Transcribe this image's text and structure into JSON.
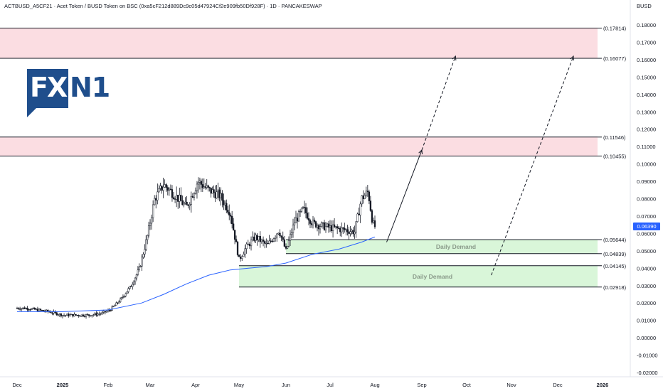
{
  "header": {
    "title": "ACTBUSD_A5CF21 · Acet Token / BUSD Token on BSC (0xa5cF212d889Dc9c05d47924Cf2e909fb50Df928F) · 1D · PANCAKESWAP",
    "currency": "BUSD"
  },
  "logo": {
    "part1": "FX",
    "part2": "N1"
  },
  "current_price": "0.06390",
  "colors": {
    "supply_zone": "#fbdde2",
    "demand_zone": "#d9f6d9",
    "ma_line": "#2962ff",
    "price_tag": "#2962ff",
    "logo_blue": "#1f4e8c"
  },
  "chart_data": {
    "type": "candlestick",
    "y_axis": {
      "ylim": [
        -0.025,
        0.185
      ],
      "ticks": [
        "0.18000",
        "0.17000",
        "0.16000",
        "0.15000",
        "0.14000",
        "0.13000",
        "0.12000",
        "0.11000",
        "0.10000",
        "0.09000",
        "0.08000",
        "0.07000",
        "0.06000",
        "0.05000",
        "0.04000",
        "0.03000",
        "0.02000",
        "0.01000",
        "0.00000",
        "-0.01000",
        "-0.02000"
      ],
      "tick_values": [
        0.18,
        0.17,
        0.16,
        0.15,
        0.14,
        0.13,
        0.12,
        0.11,
        0.1,
        0.09,
        0.08,
        0.07,
        0.06,
        0.05,
        0.04,
        0.03,
        0.02,
        0.01,
        0.0,
        -0.01,
        -0.02
      ]
    },
    "x_axis": {
      "labels": [
        "Dec",
        "2025",
        "Feb",
        "Mar",
        "Apr",
        "May",
        "Jun",
        "Jul",
        "Aug",
        "Sep",
        "Oct",
        "Nov",
        "Dec",
        "2026"
      ],
      "bold": [
        false,
        true,
        false,
        false,
        false,
        false,
        false,
        false,
        false,
        false,
        false,
        false,
        false,
        true
      ],
      "month_index": [
        0,
        1,
        2,
        3,
        4,
        5,
        6,
        7,
        8,
        9,
        10,
        11,
        12,
        13
      ]
    },
    "levels": [
      {
        "label": "(0.17814)",
        "value": 0.17814
      },
      {
        "label": "(0.16077)",
        "value": 0.16077
      },
      {
        "label": "(0.11546)",
        "value": 0.11546
      },
      {
        "label": "(0.10455)",
        "value": 0.10455
      },
      {
        "label": "(0.05644)",
        "value": 0.05644
      },
      {
        "label": "(0.04839)",
        "value": 0.04839
      },
      {
        "label": "(0.04145)",
        "value": 0.04145
      },
      {
        "label": "(0.02918)",
        "value": 0.02918
      }
    ],
    "zones": [
      {
        "kind": "supply",
        "top": 0.17814,
        "bottom": 0.16077,
        "start": 0.0,
        "label": ""
      },
      {
        "kind": "supply",
        "top": 0.11546,
        "bottom": 0.10455,
        "start": 0.0,
        "label": ""
      },
      {
        "kind": "demand",
        "top": 0.05644,
        "bottom": 0.04839,
        "start": 6.0,
        "label": "Daily Demand"
      },
      {
        "kind": "demand",
        "top": 0.04145,
        "bottom": 0.02918,
        "start": 5.0,
        "label": "Daily Demand"
      }
    ],
    "price_path": [
      [
        0.0,
        0.017
      ],
      [
        0.2,
        0.017
      ],
      [
        0.45,
        0.016
      ],
      [
        0.7,
        0.015
      ],
      [
        1.0,
        0.013
      ],
      [
        1.3,
        0.013
      ],
      [
        1.6,
        0.013
      ],
      [
        1.85,
        0.014
      ],
      [
        2.05,
        0.016
      ],
      [
        2.3,
        0.022
      ],
      [
        2.55,
        0.03
      ],
      [
        2.75,
        0.04
      ],
      [
        2.95,
        0.06
      ],
      [
        3.1,
        0.08
      ],
      [
        3.3,
        0.088
      ],
      [
        3.55,
        0.082
      ],
      [
        3.8,
        0.075
      ],
      [
        4.05,
        0.09
      ],
      [
        4.3,
        0.085
      ],
      [
        4.55,
        0.082
      ],
      [
        4.8,
        0.072
      ],
      [
        5.0,
        0.045
      ],
      [
        5.15,
        0.052
      ],
      [
        5.35,
        0.058
      ],
      [
        5.6,
        0.053
      ],
      [
        5.85,
        0.062
      ],
      [
        6.0,
        0.05
      ],
      [
        6.2,
        0.067
      ],
      [
        6.4,
        0.074
      ],
      [
        6.6,
        0.066
      ],
      [
        6.85,
        0.064
      ],
      [
        7.1,
        0.063
      ],
      [
        7.35,
        0.062
      ],
      [
        7.55,
        0.061
      ],
      [
        7.7,
        0.08
      ],
      [
        7.85,
        0.084
      ],
      [
        7.95,
        0.066
      ],
      [
        8.0,
        0.0639
      ]
    ],
    "moving_average": [
      [
        0.0,
        0.015
      ],
      [
        1.0,
        0.015
      ],
      [
        2.0,
        0.016
      ],
      [
        2.8,
        0.02
      ],
      [
        3.3,
        0.025
      ],
      [
        3.8,
        0.031
      ],
      [
        4.3,
        0.036
      ],
      [
        4.8,
        0.039
      ],
      [
        5.2,
        0.04
      ],
      [
        5.6,
        0.041
      ],
      [
        6.0,
        0.043
      ],
      [
        6.6,
        0.048
      ],
      [
        7.2,
        0.051
      ],
      [
        7.7,
        0.055
      ],
      [
        8.0,
        0.058
      ]
    ],
    "projections": [
      {
        "from": [
          8.25,
          0.055
        ],
        "to": [
          9.0,
          0.108
        ],
        "style": "solid"
      },
      {
        "from": [
          9.0,
          0.108
        ],
        "to": [
          9.75,
          0.162
        ],
        "style": "dashed"
      },
      {
        "from": [
          10.55,
          0.036
        ],
        "to": [
          12.35,
          0.162
        ],
        "style": "dashed"
      }
    ]
  }
}
